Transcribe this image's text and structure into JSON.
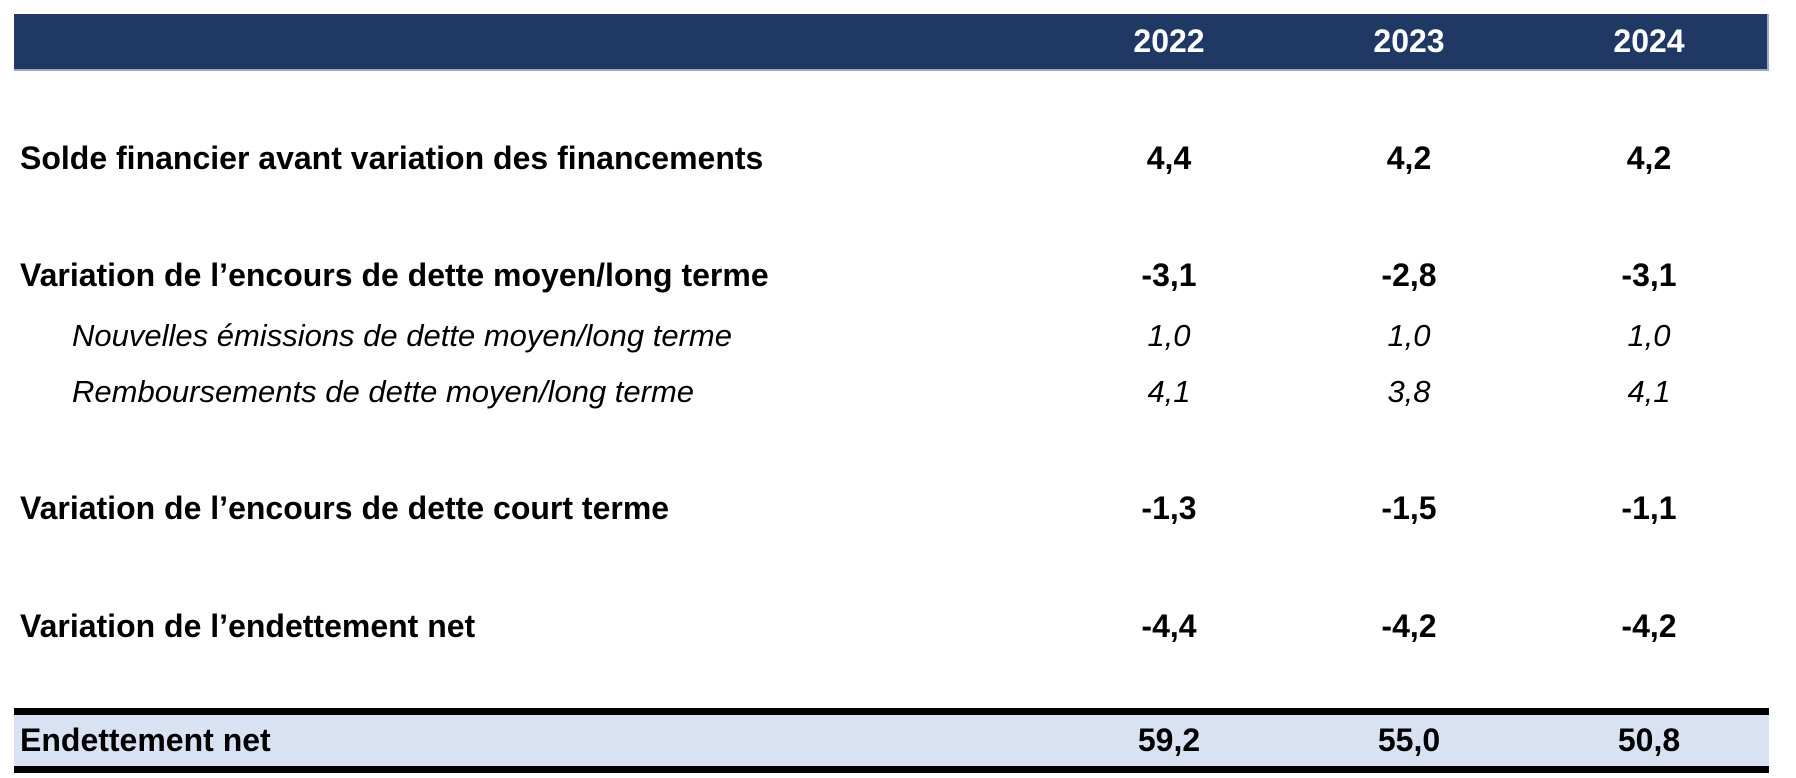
{
  "table": {
    "header": {
      "years": [
        "2022",
        "2023",
        "2024"
      ],
      "bg_color": "#1F3864",
      "text_color": "#FFFFFF"
    },
    "rows": [
      {
        "label": "Solde financier avant variation des financements",
        "style": "bold",
        "values": [
          "4,4",
          "4,2",
          "4,2"
        ]
      },
      {
        "label": "Variation de l’encours de dette moyen/long terme",
        "style": "bold",
        "values": [
          "-3,1",
          "-2,8",
          "-3,1"
        ]
      },
      {
        "label": "Nouvelles émissions de dette moyen/long terme",
        "style": "italic",
        "values": [
          "1,0",
          "1,0",
          "1,0"
        ]
      },
      {
        "label": "Remboursements de dette moyen/long terme",
        "style": "italic",
        "values": [
          "4,1",
          "3,8",
          "4,1"
        ]
      },
      {
        "label": "Variation de l’encours de dette court terme",
        "style": "bold",
        "values": [
          "-1,3",
          "-1,5",
          "-1,1"
        ]
      },
      {
        "label": "Variation de l’endettement net",
        "style": "bold",
        "values": [
          "-4,4",
          "-4,2",
          "-4,2"
        ]
      }
    ],
    "total_row": {
      "label": "Endettement net",
      "values": [
        "59,2",
        "55,0",
        "50,8"
      ],
      "bg_color": "#D9E2F3",
      "rule_color": "#000000"
    }
  }
}
